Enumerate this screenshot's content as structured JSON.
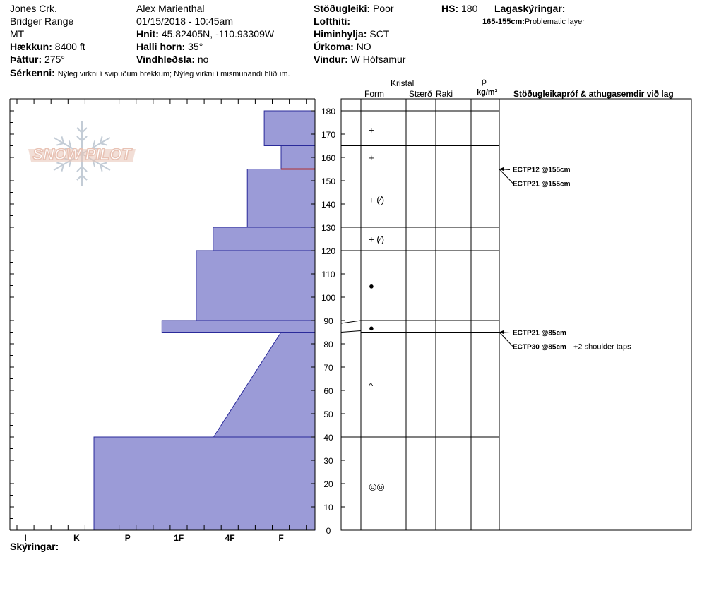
{
  "header": {
    "location": "Jones Crk.",
    "range": "Bridger Range",
    "state": "MT",
    "elevation_label": "Hækkun:",
    "elevation_value": "8400 ft",
    "aspect_label": "Þáttur:",
    "aspect_value": "275°",
    "features_label": "Sérkenni:",
    "features_value": "Nýleg virkni í svipuðum brekkum; Nýleg virkni í mismunandi hlíðum.",
    "observer": "Alex Marienthal",
    "datetime": "01/15/2018 - 10:45am",
    "coords_label": "Hnit:",
    "coords_value": "45.82405N, -110.93309W",
    "slope_label": "Halli horn:",
    "slope_value": "35°",
    "wind_loading_label": "Vindhleðsla:",
    "wind_loading_value": "no",
    "stability_label": "Stöðugleiki:",
    "stability_value": "Poor",
    "air_temp_label": "Lofthiti:",
    "sky_label": "Himinhylja:",
    "sky_value": "SCT",
    "precip_label": "Úrkoma:",
    "precip_value": "NO",
    "wind_label": "Vindur:",
    "wind_value": "W Hófsamur",
    "hs_label": "HS:",
    "hs_value": "180",
    "legend_label": "Lagaskýringar:",
    "legend_range": "165-155cm:",
    "legend_text": "Problematic layer"
  },
  "logo": {
    "text": "SNOW PILOT"
  },
  "table_header": {
    "crystal": "Kristal",
    "form": "Form",
    "size": "Stærð",
    "moisture": "Raki",
    "rho": "ρ",
    "density_unit": "kg/m³",
    "stability_col": "Stöðugleikapróf & athugasemdir við lag"
  },
  "footer": {
    "notes_label": "Skýringar:"
  },
  "colors": {
    "hardness_fill": "#9b9bd7",
    "hardness_stroke": "#2a2a9a",
    "problem_layer": "#b03030",
    "logo": "#e8c2b4",
    "snowflake": "#c3ccd6"
  },
  "chart_data": {
    "type": "snow-profile",
    "depth_axis": {
      "min": 0,
      "max": 180,
      "step": 10,
      "ticks": [
        "0",
        "10",
        "20",
        "30",
        "40",
        "50",
        "60",
        "70",
        "80",
        "90",
        "100",
        "110",
        "120",
        "130",
        "140",
        "150",
        "160",
        "170",
        "180"
      ]
    },
    "hardness_axis": {
      "labels": [
        "I",
        "K",
        "P",
        "1F",
        "4F",
        "F"
      ],
      "values": [
        6,
        5,
        4,
        3,
        2,
        1
      ]
    },
    "hardness_profile": [
      {
        "bottom": 0,
        "top": 40,
        "hardness_bottom": 4.66,
        "hardness_top": 4.66
      },
      {
        "bottom": 40,
        "top": 85,
        "hardness_bottom": 2.32,
        "hardness_top": 1.0
      },
      {
        "bottom": 85,
        "top": 90,
        "hardness_bottom": 3.33,
        "hardness_top": 3.33
      },
      {
        "bottom": 90,
        "top": 120,
        "hardness_bottom": 2.66,
        "hardness_top": 2.66
      },
      {
        "bottom": 120,
        "top": 130,
        "hardness_bottom": 2.33,
        "hardness_top": 2.33
      },
      {
        "bottom": 130,
        "top": 155,
        "hardness_bottom": 1.66,
        "hardness_top": 1.66
      },
      {
        "bottom": 155,
        "top": 165,
        "hardness_bottom": 1.0,
        "hardness_top": 1.0
      },
      {
        "bottom": 165,
        "top": 180,
        "hardness_bottom": 1.33,
        "hardness_top": 1.33
      }
    ],
    "problem_layer_depth": 155,
    "layer_boundaries": [
      180,
      165,
      155,
      130,
      120,
      90,
      85,
      40
    ],
    "grain_forms": [
      {
        "depth": 172,
        "symbol": "+"
      },
      {
        "depth": 160,
        "symbol": "+"
      },
      {
        "depth": 142,
        "symbol": "+ (⁄)"
      },
      {
        "depth": 125,
        "symbol": "+ (⁄)"
      },
      {
        "depth": 105,
        "symbol": "●"
      },
      {
        "depth": 87,
        "symbol": "●"
      },
      {
        "depth": 62,
        "symbol": "^"
      },
      {
        "depth": 19,
        "symbol": "◎◎"
      }
    ],
    "stability_tests": [
      {
        "depth": 155,
        "lines": [
          "ECTP12 @155cm",
          "ECTP21 @155cm"
        ],
        "comment": ""
      },
      {
        "depth": 85,
        "lines": [
          "ECTP21 @85cm",
          "ECTP30 @85cm"
        ],
        "comment": "+2 shoulder taps"
      }
    ]
  }
}
